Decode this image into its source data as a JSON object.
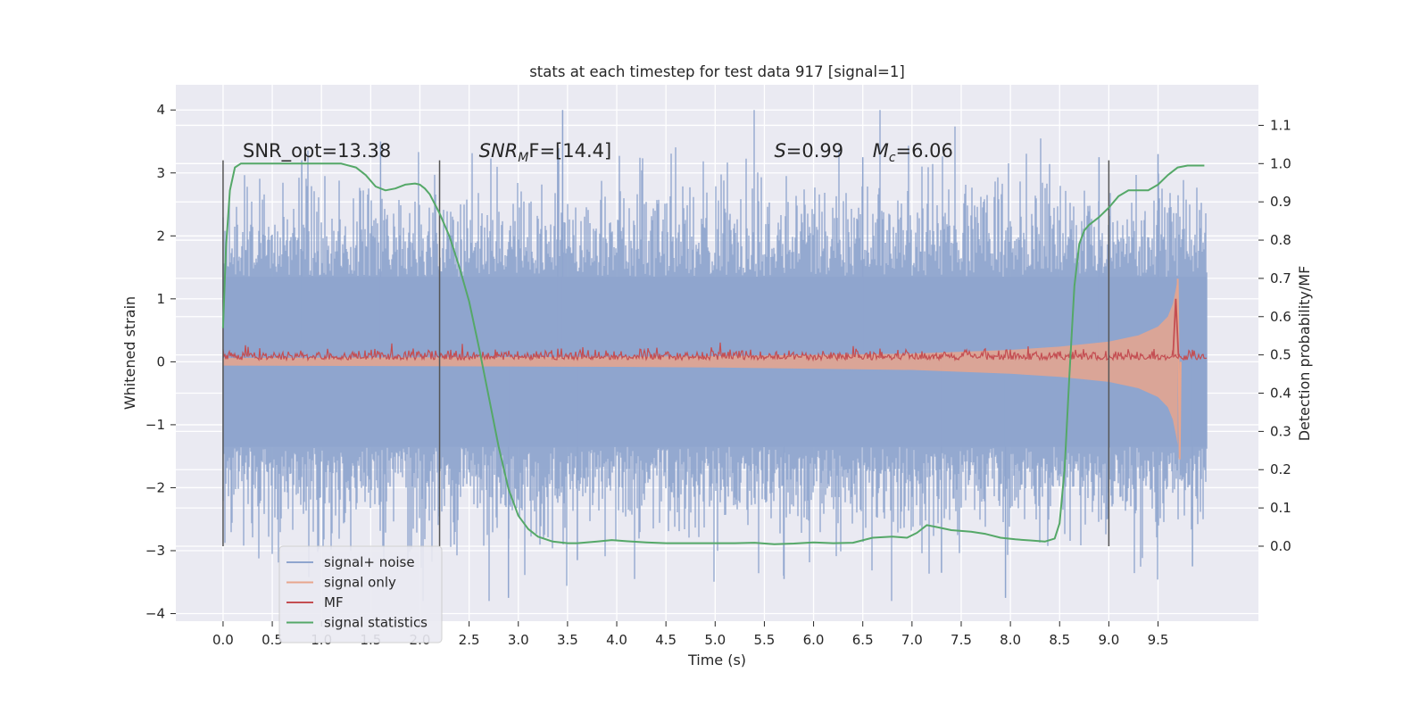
{
  "chart_data": {
    "type": "line",
    "title": "stats at each timestep for test data 917 [signal=1]",
    "xlabel": "Time (s)",
    "ylabel": "Whitened strain",
    "y2label": "Detection probability/MF",
    "xlim": [
      -0.48,
      10.52
    ],
    "ylim": [
      -4.12,
      4.4
    ],
    "y2lim": [
      -0.196,
      1.206
    ],
    "xticks": [
      "0.0",
      "0.5",
      "1.0",
      "1.5",
      "2.0",
      "2.5",
      "3.0",
      "3.5",
      "4.0",
      "4.5",
      "5.0",
      "5.5",
      "6.0",
      "6.5",
      "7.0",
      "7.5",
      "8.0",
      "8.5",
      "9.0",
      "9.5"
    ],
    "yticks": [
      "−4",
      "−3",
      "−2",
      "−1",
      "0",
      "1",
      "2",
      "3",
      "4"
    ],
    "y2ticks": [
      "0.0",
      "0.1",
      "0.2",
      "0.3",
      "0.4",
      "0.5",
      "0.6",
      "0.7",
      "0.8",
      "0.9",
      "1.0",
      "1.1"
    ],
    "grid": true,
    "legend_position": "lower-left",
    "series": [
      {
        "name": "signal+ noise",
        "color": "#8fa5ce",
        "style": "dense noisy band",
        "x_range": [
          0.0,
          9.99
        ],
        "y_approx_range": [
          -3.8,
          4.0
        ],
        "notes": "whitened strain, mostly within [-2.2, 2.2] with spikes"
      },
      {
        "name": "signal only",
        "color": "#e8a58d",
        "style": "chirp envelope",
        "x": [
          0.0,
          2.0,
          4.0,
          5.0,
          6.0,
          7.0,
          8.0,
          8.5,
          9.0,
          9.3,
          9.5,
          9.6,
          9.65,
          9.68,
          9.7
        ],
        "envelope": [
          0.06,
          0.07,
          0.08,
          0.09,
          0.11,
          0.13,
          0.19,
          0.24,
          0.32,
          0.42,
          0.56,
          0.72,
          0.92,
          1.15,
          1.32
        ],
        "notes": "envelope amplitude (strain units) symmetric about 0, merger near t=9.68"
      },
      {
        "name": "MF",
        "color": "#c44e52",
        "style": "thin noisy line",
        "x_range": [
          0.0,
          9.99
        ],
        "y_approx_range": [
          0.0,
          0.25
        ],
        "peak": {
          "x": 9.68,
          "y": 1.0
        },
        "notes": "matched filter output, small except a peak at merger"
      },
      {
        "name": "signal statistics",
        "color": "#55a868",
        "axis": "right",
        "x": [
          0.0,
          0.03,
          0.07,
          0.12,
          0.18,
          0.3,
          0.5,
          0.8,
          1.0,
          1.2,
          1.35,
          1.45,
          1.55,
          1.65,
          1.75,
          1.85,
          1.95,
          2.0,
          2.05,
          2.1,
          2.2,
          2.3,
          2.4,
          2.5,
          2.6,
          2.7,
          2.8,
          2.9,
          3.0,
          3.1,
          3.2,
          3.35,
          3.5,
          3.6,
          3.8,
          3.95,
          4.1,
          4.3,
          4.5,
          4.8,
          5.0,
          5.2,
          5.4,
          5.6,
          5.8,
          6.0,
          6.2,
          6.4,
          6.6,
          6.8,
          6.95,
          7.05,
          7.15,
          7.25,
          7.4,
          7.6,
          7.75,
          7.9,
          8.05,
          8.2,
          8.35,
          8.45,
          8.5,
          8.55,
          8.6,
          8.65,
          8.7,
          8.75,
          8.8,
          8.9,
          9.0,
          9.1,
          9.2,
          9.3,
          9.4,
          9.5,
          9.6,
          9.7,
          9.8,
          9.9,
          9.97
        ],
        "y": [
          0.57,
          0.78,
          0.93,
          0.99,
          1.0,
          1.0,
          1.0,
          1.0,
          1.0,
          1.0,
          0.99,
          0.97,
          0.94,
          0.93,
          0.935,
          0.945,
          0.948,
          0.945,
          0.935,
          0.92,
          0.87,
          0.81,
          0.73,
          0.64,
          0.52,
          0.39,
          0.26,
          0.15,
          0.08,
          0.045,
          0.025,
          0.012,
          0.008,
          0.008,
          0.012,
          0.016,
          0.013,
          0.01,
          0.008,
          0.008,
          0.008,
          0.008,
          0.009,
          0.005,
          0.007,
          0.01,
          0.008,
          0.009,
          0.022,
          0.025,
          0.022,
          0.035,
          0.055,
          0.05,
          0.042,
          0.038,
          0.032,
          0.022,
          0.018,
          0.015,
          0.012,
          0.02,
          0.06,
          0.2,
          0.45,
          0.68,
          0.79,
          0.825,
          0.84,
          0.86,
          0.885,
          0.915,
          0.93,
          0.93,
          0.93,
          0.945,
          0.97,
          0.99,
          0.995,
          0.995,
          0.995
        ]
      }
    ],
    "vlines": [
      {
        "x": 0.0,
        "y_range": [
          -2.93,
          3.2
        ]
      },
      {
        "x": 2.2,
        "y_range": [
          -2.93,
          3.2
        ]
      },
      {
        "x": 9.0,
        "y_range": [
          -2.93,
          3.2
        ]
      }
    ],
    "annotations": [
      {
        "text": "SNR_opt=13.38",
        "x": 0.2,
        "y": 3.25
      },
      {
        "text": "SNR",
        "sub": "M",
        "suffix": "F=[14.4]",
        "italic_prefix": true,
        "x": 2.6,
        "y": 3.25
      },
      {
        "text": "S",
        "suffix": "=0.99",
        "italic_prefix": true,
        "x": 5.6,
        "y": 3.25
      },
      {
        "text": "M",
        "sub": "c",
        "suffix": "=6.06",
        "italic_prefix": true,
        "x": 6.6,
        "y": 3.25
      }
    ]
  }
}
